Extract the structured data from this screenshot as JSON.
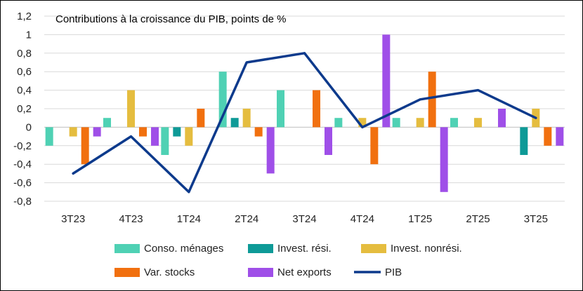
{
  "chart_data": {
    "type": "bar",
    "title": "Contributions à la croissance du PIB, points de %",
    "xlabel": "",
    "ylabel": "",
    "ylim": [
      -0.8,
      1.2
    ],
    "yticks": [
      -0.8,
      -0.6,
      -0.4,
      -0.2,
      0,
      0.2,
      0.4,
      0.6,
      0.8,
      1,
      1.2
    ],
    "ytick_labels": [
      "-0,8",
      "-0,6",
      "-0,4",
      "-0,2",
      "0",
      "0,2",
      "0,4",
      "0,6",
      "0,8",
      "1",
      "1,2"
    ],
    "grid": true,
    "legend": "bottom",
    "categories": [
      "3T23",
      "4T23",
      "1T24",
      "2T24",
      "3T24",
      "4T24",
      "1T25",
      "2T25",
      "3T25"
    ],
    "series": [
      {
        "name": "Conso. ménages",
        "type": "bar",
        "color": "#4fd1b4",
        "values": [
          -0.2,
          0.1,
          -0.3,
          0.6,
          0.4,
          0.1,
          0.1,
          0.1,
          0.0
        ]
      },
      {
        "name": "Invest. rési.",
        "type": "bar",
        "color": "#0e9a97",
        "values": [
          0.0,
          0.0,
          -0.1,
          0.1,
          0.0,
          0.0,
          0.0,
          0.0,
          -0.3
        ]
      },
      {
        "name": "Invest. nonrési.",
        "type": "bar",
        "color": "#e5bd3f",
        "values": [
          -0.1,
          0.4,
          -0.2,
          0.2,
          0.0,
          0.1,
          0.1,
          0.1,
          0.2
        ]
      },
      {
        "name": "Var. stocks",
        "type": "bar",
        "color": "#f1700f",
        "values": [
          -0.4,
          -0.1,
          0.2,
          -0.1,
          0.4,
          -0.4,
          0.6,
          0.0,
          -0.2
        ]
      },
      {
        "name": "Net exports",
        "type": "bar",
        "color": "#9f4fe8",
        "values": [
          -0.1,
          -0.2,
          0.0,
          -0.5,
          -0.3,
          1.0,
          -0.7,
          0.2,
          -0.2
        ]
      },
      {
        "name": "PIB",
        "type": "line",
        "color": "#0d3a8c",
        "values": [
          -0.5,
          -0.1,
          -0.7,
          0.7,
          0.8,
          0.0,
          0.3,
          0.4,
          0.1
        ]
      }
    ]
  }
}
